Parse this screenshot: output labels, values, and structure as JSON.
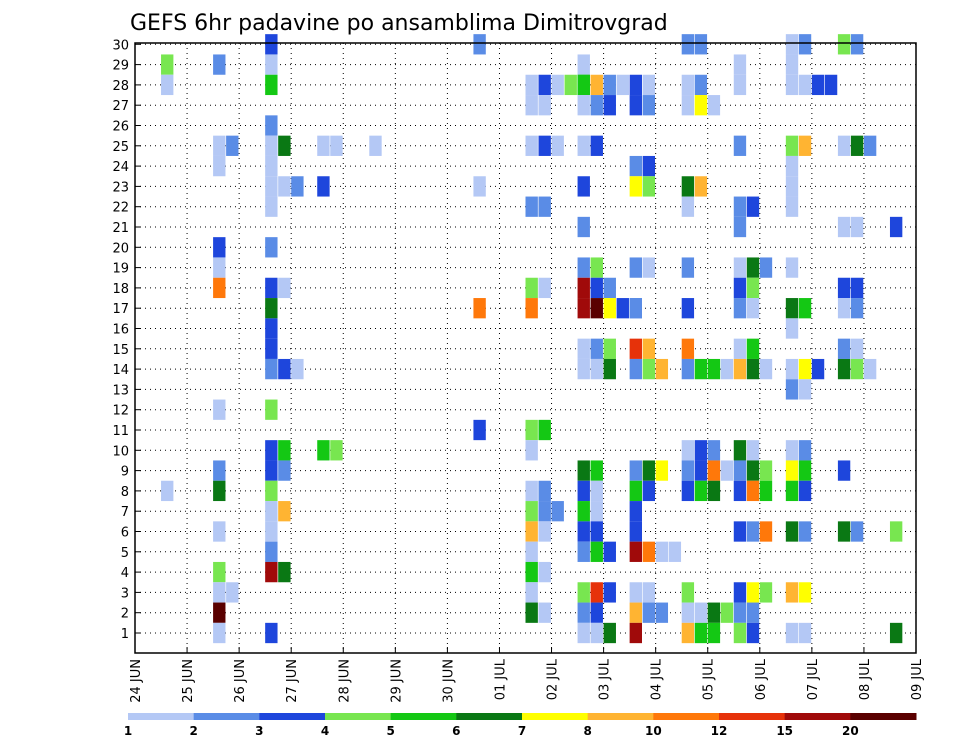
{
  "chart_data": {
    "type": "heatmap",
    "title": "GEFS 6hr padavine po ansamblima Dimitrovgrad",
    "xlabel": "",
    "ylabel": "",
    "x_ticks": [
      "24 JUN",
      "25 JUN",
      "26 JUN",
      "27 JUN",
      "28 JUN",
      "29 JUN",
      "30 JUN",
      "01 JUL",
      "02 JUL",
      "03 JUL",
      "04 JUL",
      "05 JUL",
      "06 JUL",
      "07 JUL",
      "08 JUL",
      "09 JUL"
    ],
    "y_ticks": [
      1,
      2,
      3,
      4,
      5,
      6,
      7,
      8,
      9,
      10,
      11,
      12,
      13,
      14,
      15,
      16,
      17,
      18,
      19,
      20,
      21,
      22,
      23,
      24,
      25,
      26,
      27,
      28,
      29,
      30
    ],
    "x_range": [
      "24 JUN",
      "09 JUL"
    ],
    "y_range": [
      1,
      30
    ],
    "grid": true,
    "colorbar": {
      "labels": [
        "1",
        "2",
        "3",
        "4",
        "5",
        "6",
        "7",
        "8",
        "10",
        "12",
        "15",
        "20"
      ],
      "colors": [
        "#b4c8f5",
        "#5a8ce6",
        "#1e46dc",
        "#78e650",
        "#14c814",
        "#0a7814",
        "#ffff00",
        "#ffb432",
        "#ff780a",
        "#e6320a",
        "#a00a0a",
        "#5a0000"
      ]
    },
    "cells": [
      [
        30,
        "27 JUN",
        3
      ],
      [
        30,
        "01 JUL",
        2
      ],
      [
        30,
        "05 JUL",
        2
      ],
      [
        30,
        "05 JUL",
        2
      ],
      [
        30,
        "07 JUL",
        1
      ],
      [
        30,
        "07 JUL",
        2
      ],
      [
        30,
        "08 JUL",
        4
      ],
      [
        30,
        "08 JUL",
        2
      ],
      [
        29,
        "25 JUN",
        4
      ],
      [
        29,
        "26 JUN",
        2
      ],
      [
        29,
        "27 JUN",
        1
      ],
      [
        29,
        "03 JUL",
        1
      ],
      [
        29,
        "06 JUL",
        1
      ],
      [
        29,
        "07 JUL",
        1
      ],
      [
        28,
        "25 JUN",
        1
      ],
      [
        28,
        "27 JUN",
        5
      ],
      [
        28,
        "02 JUL",
        1
      ],
      [
        28,
        "02 JUL",
        3
      ],
      [
        28,
        "02 JUL",
        1
      ],
      [
        28,
        "02 JUL",
        4
      ],
      [
        28,
        "02 JUL",
        5
      ],
      [
        28,
        "03 JUL",
        5
      ],
      [
        28,
        "03 JUL",
        8
      ],
      [
        28,
        "03 JUL",
        2
      ],
      [
        28,
        "03 JUL",
        1
      ],
      [
        28,
        "04 JUL",
        3
      ],
      [
        28,
        "04 JUL",
        1
      ],
      [
        28,
        "05 JUL",
        1
      ],
      [
        28,
        "05 JUL",
        2
      ],
      [
        28,
        "06 JUL",
        1
      ],
      [
        28,
        "07 JUL",
        1
      ],
      [
        28,
        "07 JUL",
        1
      ],
      [
        28,
        "07 JUL",
        3
      ],
      [
        28,
        "07 JUL",
        3
      ],
      [
        27,
        "02 JUL",
        1
      ],
      [
        27,
        "02 JUL",
        1
      ],
      [
        27,
        "03 JUL",
        1
      ],
      [
        27,
        "03 JUL",
        2
      ],
      [
        27,
        "03 JUL",
        3
      ],
      [
        27,
        "04 JUL",
        3
      ],
      [
        27,
        "04 JUL",
        2
      ],
      [
        27,
        "05 JUL",
        1
      ],
      [
        27,
        "05 JUL",
        7
      ],
      [
        27,
        "05 JUL",
        1
      ],
      [
        26,
        "27 JUN",
        2
      ],
      [
        25,
        "26 JUN",
        1
      ],
      [
        25,
        "26 JUN",
        2
      ],
      [
        25,
        "27 JUN",
        1
      ],
      [
        25,
        "27 JUN",
        6
      ],
      [
        25,
        "28 JUN",
        1
      ],
      [
        25,
        "28 JUN",
        1
      ],
      [
        25,
        "29 JUN",
        1
      ],
      [
        25,
        "02 JUL",
        1
      ],
      [
        25,
        "02 JUL",
        3
      ],
      [
        25,
        "02 JUL",
        1
      ],
      [
        25,
        "03 JUL",
        1
      ],
      [
        25,
        "03 JUL",
        3
      ],
      [
        25,
        "06 JUL",
        2
      ],
      [
        25,
        "07 JUL",
        4
      ],
      [
        25,
        "07 JUL",
        8
      ],
      [
        25,
        "08 JUL",
        1
      ],
      [
        25,
        "08 JUL",
        6
      ],
      [
        25,
        "08 JUL",
        2
      ],
      [
        24,
        "26 JUN",
        1
      ],
      [
        24,
        "27 JUN",
        1
      ],
      [
        24,
        "04 JUL",
        2
      ],
      [
        24,
        "04 JUL",
        3
      ],
      [
        24,
        "07 JUL",
        1
      ],
      [
        23,
        "27 JUN",
        1
      ],
      [
        23,
        "27 JUN",
        1
      ],
      [
        23,
        "27 JUN",
        2
      ],
      [
        23,
        "28 JUN",
        3
      ],
      [
        23,
        "01 JUL",
        1
      ],
      [
        23,
        "03 JUL",
        3
      ],
      [
        23,
        "04 JUL",
        7
      ],
      [
        23,
        "04 JUL",
        4
      ],
      [
        23,
        "05 JUL",
        6
      ],
      [
        23,
        "05 JUL",
        8
      ],
      [
        23,
        "07 JUL",
        1
      ],
      [
        22,
        "27 JUN",
        1
      ],
      [
        22,
        "02 JUL",
        2
      ],
      [
        22,
        "02 JUL",
        2
      ],
      [
        22,
        "05 JUL",
        1
      ],
      [
        22,
        "06 JUL",
        2
      ],
      [
        22,
        "06 JUL",
        3
      ],
      [
        22,
        "07 JUL",
        1
      ],
      [
        21,
        "03 JUL",
        2
      ],
      [
        21,
        "06 JUL",
        2
      ],
      [
        21,
        "08 JUL",
        1
      ],
      [
        21,
        "08 JUL",
        1
      ],
      [
        21,
        "09 JUL",
        3
      ],
      [
        20,
        "26 JUN",
        3
      ],
      [
        20,
        "27 JUN",
        2
      ],
      [
        19,
        "26 JUN",
        1
      ],
      [
        19,
        "03 JUL",
        2
      ],
      [
        19,
        "03 JUL",
        4
      ],
      [
        19,
        "04 JUL",
        2
      ],
      [
        19,
        "04 JUL",
        1
      ],
      [
        19,
        "05 JUL",
        2
      ],
      [
        19,
        "06 JUL",
        1
      ],
      [
        19,
        "06 JUL",
        6
      ],
      [
        19,
        "06 JUL",
        2
      ],
      [
        19,
        "07 JUL",
        1
      ],
      [
        18,
        "26 JUN",
        9
      ],
      [
        18,
        "27 JUN",
        3
      ],
      [
        18,
        "27 JUN",
        1
      ],
      [
        18,
        "02 JUL",
        4
      ],
      [
        18,
        "02 JUL",
        1
      ],
      [
        18,
        "03 JUL",
        11
      ],
      [
        18,
        "03 JUL",
        3
      ],
      [
        18,
        "03 JUL",
        2
      ],
      [
        18,
        "06 JUL",
        3
      ],
      [
        18,
        "06 JUL",
        4
      ],
      [
        18,
        "08 JUL",
        3
      ],
      [
        18,
        "08 JUL",
        3
      ],
      [
        17,
        "27 JUN",
        6
      ],
      [
        17,
        "01 JUL",
        9
      ],
      [
        17,
        "02 JUL",
        9
      ],
      [
        17,
        "03 JUL",
        11
      ],
      [
        17,
        "03 JUL",
        12
      ],
      [
        17,
        "03 JUL",
        7
      ],
      [
        17,
        "03 JUL",
        3
      ],
      [
        17,
        "03 JUL",
        2
      ],
      [
        17,
        "04 JUL",
        2
      ],
      [
        17,
        "05 JUL",
        3
      ],
      [
        17,
        "06 JUL",
        2
      ],
      [
        17,
        "06 JUL",
        1
      ],
      [
        17,
        "07 JUL",
        6
      ],
      [
        17,
        "07 JUL",
        5
      ],
      [
        17,
        "08 JUL",
        1
      ],
      [
        17,
        "08 JUL",
        2
      ],
      [
        16,
        "27 JUN",
        3
      ],
      [
        16,
        "07 JUL",
        1
      ],
      [
        15,
        "27 JUN",
        3
      ],
      [
        15,
        "03 JUL",
        1
      ],
      [
        15,
        "03 JUL",
        2
      ],
      [
        15,
        "03 JUL",
        4
      ],
      [
        15,
        "04 JUL",
        10
      ],
      [
        15,
        "04 JUL",
        8
      ],
      [
        15,
        "05 JUL",
        9
      ],
      [
        15,
        "06 JUL",
        1
      ],
      [
        15,
        "06 JUL",
        5
      ],
      [
        15,
        "08 JUL",
        2
      ],
      [
        15,
        "08 JUL",
        1
      ],
      [
        14,
        "27 JUN",
        2
      ],
      [
        14,
        "27 JUN",
        3
      ],
      [
        14,
        "27 JUN",
        1
      ],
      [
        14,
        "03 JUL",
        1
      ],
      [
        14,
        "03 JUL",
        1
      ],
      [
        14,
        "03 JUL",
        6
      ],
      [
        14,
        "04 JUL",
        2
      ],
      [
        14,
        "04 JUL",
        4
      ],
      [
        14,
        "04 JUL",
        8
      ],
      [
        14,
        "05 JUL",
        2
      ],
      [
        14,
        "05 JUL",
        5
      ],
      [
        14,
        "05 JUL",
        5
      ],
      [
        14,
        "05 JUL",
        1
      ],
      [
        14,
        "06 JUL",
        8
      ],
      [
        14,
        "06 JUL",
        6
      ],
      [
        14,
        "06 JUL",
        1
      ],
      [
        14,
        "07 JUL",
        1
      ],
      [
        14,
        "07 JUL",
        7
      ],
      [
        14,
        "07 JUL",
        3
      ],
      [
        14,
        "08 JUL",
        6
      ],
      [
        14,
        "08 JUL",
        4
      ],
      [
        14,
        "08 JUL",
        1
      ],
      [
        13,
        "07 JUL",
        2
      ],
      [
        13,
        "07 JUL",
        1
      ],
      [
        12,
        "26 JUN",
        1
      ],
      [
        12,
        "27 JUN",
        4
      ],
      [
        11,
        "01 JUL",
        3
      ],
      [
        11,
        "02 JUL",
        4
      ],
      [
        11,
        "02 JUL",
        5
      ],
      [
        10,
        "27 JUN",
        3
      ],
      [
        10,
        "27 JUN",
        5
      ],
      [
        10,
        "28 JUN",
        5
      ],
      [
        10,
        "28 JUN",
        4
      ],
      [
        10,
        "02 JUL",
        1
      ],
      [
        10,
        "05 JUL",
        1
      ],
      [
        10,
        "05 JUL",
        3
      ],
      [
        10,
        "05 JUL",
        2
      ],
      [
        10,
        "06 JUL",
        6
      ],
      [
        10,
        "06 JUL",
        1
      ],
      [
        10,
        "07 JUL",
        1
      ],
      [
        10,
        "07 JUL",
        2
      ],
      [
        9,
        "26 JUN",
        2
      ],
      [
        9,
        "27 JUN",
        3
      ],
      [
        9,
        "27 JUN",
        2
      ],
      [
        9,
        "03 JUL",
        6
      ],
      [
        9,
        "03 JUL",
        5
      ],
      [
        9,
        "04 JUL",
        2
      ],
      [
        9,
        "04 JUL",
        6
      ],
      [
        9,
        "04 JUL",
        7
      ],
      [
        9,
        "05 JUL",
        2
      ],
      [
        9,
        "05 JUL",
        3
      ],
      [
        9,
        "05 JUL",
        9
      ],
      [
        9,
        "05 JUL",
        1
      ],
      [
        9,
        "06 JUL",
        2
      ],
      [
        9,
        "06 JUL",
        6
      ],
      [
        9,
        "06 JUL",
        4
      ],
      [
        9,
        "07 JUL",
        7
      ],
      [
        9,
        "07 JUL",
        5
      ],
      [
        9,
        "08 JUL",
        3
      ],
      [
        8,
        "25 JUN",
        1
      ],
      [
        8,
        "26 JUN",
        6
      ],
      [
        8,
        "27 JUN",
        4
      ],
      [
        8,
        "02 JUL",
        1
      ],
      [
        8,
        "02 JUL",
        2
      ],
      [
        8,
        "03 JUL",
        3
      ],
      [
        8,
        "03 JUL",
        1
      ],
      [
        8,
        "04 JUL",
        5
      ],
      [
        8,
        "04 JUL",
        3
      ],
      [
        8,
        "05 JUL",
        3
      ],
      [
        8,
        "05 JUL",
        5
      ],
      [
        8,
        "05 JUL",
        6
      ],
      [
        8,
        "06 JUL",
        3
      ],
      [
        8,
        "06 JUL",
        9
      ],
      [
        8,
        "06 JUL",
        5
      ],
      [
        8,
        "07 JUL",
        5
      ],
      [
        8,
        "07 JUL",
        3
      ],
      [
        7,
        "27 JUN",
        1
      ],
      [
        7,
        "27 JUN",
        8
      ],
      [
        7,
        "02 JUL",
        4
      ],
      [
        7,
        "02 JUL",
        2
      ],
      [
        7,
        "02 JUL",
        2
      ],
      [
        7,
        "03 JUL",
        5
      ],
      [
        7,
        "03 JUL",
        1
      ],
      [
        7,
        "04 JUL",
        3
      ],
      [
        6,
        "26 JUN",
        1
      ],
      [
        6,
        "27 JUN",
        1
      ],
      [
        6,
        "02 JUL",
        8
      ],
      [
        6,
        "02 JUL",
        1
      ],
      [
        6,
        "03 JUL",
        3
      ],
      [
        6,
        "03 JUL",
        3
      ],
      [
        6,
        "04 JUL",
        3
      ],
      [
        6,
        "06 JUL",
        3
      ],
      [
        6,
        "06 JUL",
        2
      ],
      [
        6,
        "06 JUL",
        9
      ],
      [
        6,
        "07 JUL",
        6
      ],
      [
        6,
        "07 JUL",
        2
      ],
      [
        6,
        "08 JUL",
        6
      ],
      [
        6,
        "08 JUL",
        2
      ],
      [
        6,
        "09 JUL",
        4
      ],
      [
        5,
        "27 JUN",
        2
      ],
      [
        5,
        "02 JUL",
        1
      ],
      [
        5,
        "03 JUL",
        2
      ],
      [
        5,
        "03 JUL",
        5
      ],
      [
        5,
        "03 JUL",
        3
      ],
      [
        5,
        "04 JUL",
        11
      ],
      [
        5,
        "04 JUL",
        9
      ],
      [
        5,
        "04 JUL",
        1
      ],
      [
        5,
        "04 JUL",
        1
      ],
      [
        4,
        "26 JUN",
        4
      ],
      [
        4,
        "27 JUN",
        11
      ],
      [
        4,
        "27 JUN",
        6
      ],
      [
        4,
        "02 JUL",
        5
      ],
      [
        4,
        "02 JUL",
        1
      ],
      [
        3,
        "26 JUN",
        1
      ],
      [
        3,
        "26 JUN",
        1
      ],
      [
        3,
        "02 JUL",
        1
      ],
      [
        3,
        "03 JUL",
        4
      ],
      [
        3,
        "03 JUL",
        10
      ],
      [
        3,
        "03 JUL",
        3
      ],
      [
        3,
        "04 JUL",
        1
      ],
      [
        3,
        "04 JUL",
        1
      ],
      [
        3,
        "05 JUL",
        4
      ],
      [
        3,
        "06 JUL",
        3
      ],
      [
        3,
        "06 JUL",
        7
      ],
      [
        3,
        "06 JUL",
        4
      ],
      [
        3,
        "07 JUL",
        8
      ],
      [
        3,
        "07 JUL",
        7
      ],
      [
        2,
        "26 JUN",
        12
      ],
      [
        2,
        "02 JUL",
        6
      ],
      [
        2,
        "02 JUL",
        1
      ],
      [
        2,
        "03 JUL",
        2
      ],
      [
        2,
        "03 JUL",
        3
      ],
      [
        2,
        "04 JUL",
        8
      ],
      [
        2,
        "04 JUL",
        2
      ],
      [
        2,
        "04 JUL",
        2
      ],
      [
        2,
        "05 JUL",
        1
      ],
      [
        2,
        "05 JUL",
        1
      ],
      [
        2,
        "05 JUL",
        6
      ],
      [
        2,
        "05 JUL",
        4
      ],
      [
        2,
        "06 JUL",
        2
      ],
      [
        2,
        "06 JUL",
        2
      ],
      [
        1,
        "26 JUN",
        1
      ],
      [
        1,
        "27 JUN",
        3
      ],
      [
        1,
        "03 JUL",
        1
      ],
      [
        1,
        "03 JUL",
        1
      ],
      [
        1,
        "03 JUL",
        6
      ],
      [
        1,
        "04 JUL",
        11
      ],
      [
        1,
        "05 JUL",
        8
      ],
      [
        1,
        "05 JUL",
        5
      ],
      [
        1,
        "05 JUL",
        5
      ],
      [
        1,
        "06 JUL",
        4
      ],
      [
        1,
        "06 JUL",
        3
      ],
      [
        1,
        "07 JUL",
        1
      ],
      [
        1,
        "07 JUL",
        1
      ],
      [
        1,
        "09 JUL",
        6
      ]
    ]
  }
}
